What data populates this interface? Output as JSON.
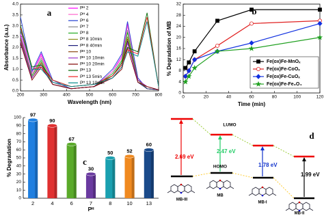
{
  "chart_data": [
    {
      "type": "line",
      "panel_label": "a",
      "xlabel": "Wavelength (nm)",
      "ylabel": "Absorbance (a.u.)",
      "x": [
        200,
        250,
        290,
        340,
        420,
        520,
        600,
        640,
        665,
        710,
        750,
        800
      ],
      "xlim": [
        200,
        800
      ],
      "xticks": [
        200,
        300,
        400,
        500,
        600,
        700,
        800
      ],
      "ylim": [
        0,
        4
      ],
      "yticks": [
        {
          "value": 0,
          "label": "0.0"
        },
        0.5,
        {
          "value": 1,
          "label": "1.0"
        },
        1.5,
        {
          "value": 2,
          "label": "2.0"
        },
        2.5,
        {
          "value": 3,
          "label": "3.0"
        },
        3.5,
        {
          "value": 4,
          "label": "4.0"
        }
      ],
      "series": [
        {
          "name": "Pᴴ 2",
          "color": "#ff00ff",
          "values": [
            2.6,
            0.8,
            1.7,
            0.4,
            0.1,
            0.2,
            0.9,
            1.6,
            3.1,
            0.6,
            0.1,
            0.05
          ]
        },
        {
          "name": "Pᴴ 4",
          "color": "#ff66cc",
          "values": [
            2.8,
            0.8,
            1.6,
            0.4,
            0.1,
            0.2,
            0.9,
            1.5,
            3.0,
            0.6,
            0.1,
            0.05
          ]
        },
        {
          "name": "Pᴴ 6",
          "color": "#1f3fd0",
          "values": [
            3.4,
            0.9,
            1.8,
            0.5,
            0.1,
            0.2,
            1.0,
            1.7,
            3.2,
            0.6,
            0.1,
            0.05
          ]
        },
        {
          "name": "Pᴴ 7",
          "color": "#888888",
          "values": [
            2.5,
            0.7,
            1.5,
            0.4,
            0.1,
            0.2,
            0.8,
            1.4,
            2.8,
            0.5,
            0.1,
            0.05
          ]
        },
        {
          "name": "Pᴴ 8",
          "color": "#22aa22",
          "values": [
            2.4,
            0.7,
            1.4,
            0.3,
            0.1,
            0.2,
            0.8,
            1.4,
            2.7,
            0.5,
            0.1,
            0.05
          ]
        },
        {
          "name": "Pᴴ 8 10min",
          "color": "#8a8a1a",
          "values": [
            2.3,
            0.6,
            1.3,
            0.3,
            0.1,
            0.2,
            0.7,
            1.3,
            2.5,
            0.5,
            0.1,
            0.05
          ]
        },
        {
          "name": "Pᴴ 8 40min",
          "color": "#1a1a7a",
          "values": [
            2.2,
            0.6,
            1.2,
            0.3,
            0.1,
            0.2,
            0.7,
            1.2,
            2.3,
            0.4,
            0.1,
            0.05
          ]
        },
        {
          "name": "Pᴴ 10",
          "color": "#8b4513",
          "values": [
            2.4,
            0.6,
            1.3,
            0.3,
            0.1,
            0.2,
            0.7,
            1.2,
            2.4,
            0.5,
            0.2,
            0.05
          ]
        },
        {
          "name": "Pᴴ 10 10min",
          "color": "#9933cc",
          "values": [
            2.3,
            0.6,
            1.2,
            0.3,
            0.1,
            0.2,
            0.6,
            1.1,
            2.2,
            0.5,
            0.2,
            0.05
          ]
        },
        {
          "name": "Pᴴ 10 20min",
          "color": "#800000",
          "values": [
            2.2,
            0.5,
            1.1,
            0.3,
            0.1,
            0.2,
            0.6,
            1.0,
            2.0,
            0.4,
            0.2,
            0.05
          ]
        },
        {
          "name": "Pᴴ 13",
          "color": "#006400",
          "values": [
            3.0,
            1.1,
            1.2,
            0.5,
            0.2,
            0.3,
            0.7,
            1.3,
            2.0,
            1.8,
            3.6,
            0.2
          ]
        },
        {
          "name": "Pᴴ 13 5min",
          "color": "#ee2222",
          "values": [
            2.9,
            1.0,
            1.1,
            0.5,
            0.2,
            0.3,
            0.7,
            1.2,
            1.9,
            1.7,
            3.4,
            0.2
          ]
        },
        {
          "name": "Pᴴ 13 10min",
          "color": "#008b8b",
          "values": [
            2.8,
            1.0,
            1.0,
            0.4,
            0.2,
            0.3,
            0.6,
            1.1,
            1.8,
            1.6,
            3.2,
            0.2
          ]
        }
      ]
    },
    {
      "type": "line",
      "panel_label": "b",
      "xlabel": "Time (min)",
      "ylabel": "% Degradation of MB",
      "x": [
        2,
        5,
        10,
        30,
        60,
        120
      ],
      "xlim": [
        0,
        120
      ],
      "xticks": [
        0,
        20,
        40,
        60,
        80,
        100,
        120
      ],
      "ylim": [
        0,
        32
      ],
      "yticks": [
        0,
        4,
        8,
        12,
        16,
        20,
        24,
        28,
        32
      ],
      "series": [
        {
          "name": "Fe(ox)Fe-MnOₓ",
          "color": "#000000",
          "marker": "square",
          "values": [
            9,
            11,
            15,
            26,
            30,
            30
          ]
        },
        {
          "name": "Fe(ox)Fe-CoOₓ",
          "color": "#e02020",
          "marker": "circle",
          "values": [
            6,
            8,
            12,
            17,
            25,
            26
          ]
        },
        {
          "name": "Fe(ox)Fe-CuOₓ",
          "color": "#1030e0",
          "marker": "diamond",
          "values": [
            6,
            8,
            12,
            15,
            18,
            25
          ]
        },
        {
          "name": "Fe(ox)Fe-Fe₃O₄",
          "color": "#20a020",
          "marker": "star",
          "values": [
            4,
            6,
            9,
            15,
            16,
            20
          ]
        }
      ]
    },
    {
      "type": "bar",
      "panel_label": "c",
      "xlabel": "Pᴴ",
      "ylabel": "% Degradation",
      "categories": [
        "2",
        "4",
        "6",
        "7",
        "8",
        "10",
        "13"
      ],
      "values": [
        97,
        90,
        67,
        30,
        50,
        52,
        60
      ],
      "colors": [
        "#1f7fe0",
        "#e03030",
        "#5aaa2a",
        "#6a3aa0",
        "#1aa0b0",
        "#f08a20",
        "#1a4a8a"
      ],
      "ylim": [
        0,
        100
      ],
      "yticks": [
        0,
        10,
        20,
        30,
        40,
        50,
        60,
        70,
        80,
        90,
        100
      ]
    }
  ],
  "diagram": {
    "panel_label": "d",
    "lumo": "LUMO",
    "homo": "HOMO",
    "transitions": [
      {
        "energy": "2.69 eV",
        "molecule": "MB-III"
      },
      {
        "energy": "2.47 eV",
        "molecule": "MB"
      },
      {
        "energy": "1.78 eV",
        "molecule": "MB-I"
      },
      {
        "energy": "1.99 eV",
        "molecule": "MB-II"
      }
    ]
  }
}
